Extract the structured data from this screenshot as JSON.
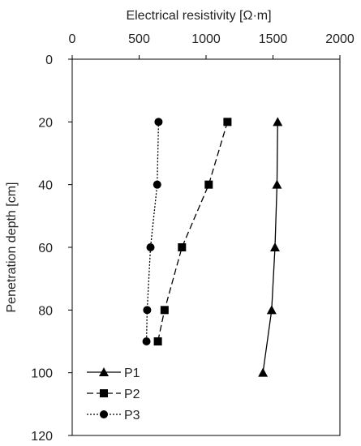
{
  "chart_data": {
    "type": "line",
    "xlabel": "Electrical resistivity [Ω·m]",
    "ylabel": "Penetration depth [cm]",
    "xlim": [
      0,
      2000
    ],
    "ylim": [
      0,
      120
    ],
    "x_ticks": [
      0,
      500,
      1000,
      1500,
      2000
    ],
    "y_ticks": [
      0,
      20,
      40,
      60,
      80,
      100,
      120
    ],
    "x_axis_position": "top",
    "y_axis_inverted": true,
    "grid": false,
    "legend_position": "bottom-left",
    "series": [
      {
        "name": "P1",
        "marker": "triangle",
        "line_style": "solid",
        "points": [
          {
            "x": 1535,
            "y": 20
          },
          {
            "x": 1530,
            "y": 40
          },
          {
            "x": 1515,
            "y": 60
          },
          {
            "x": 1490,
            "y": 80
          },
          {
            "x": 1425,
            "y": 100
          }
        ]
      },
      {
        "name": "P2",
        "marker": "square",
        "line_style": "dashed",
        "points": [
          {
            "x": 1160,
            "y": 20
          },
          {
            "x": 1020,
            "y": 40
          },
          {
            "x": 820,
            "y": 60
          },
          {
            "x": 690,
            "y": 80
          },
          {
            "x": 640,
            "y": 90
          }
        ]
      },
      {
        "name": "P3",
        "marker": "circle",
        "line_style": "dotted",
        "points": [
          {
            "x": 645,
            "y": 20
          },
          {
            "x": 635,
            "y": 40
          },
          {
            "x": 585,
            "y": 60
          },
          {
            "x": 560,
            "y": 80
          },
          {
            "x": 555,
            "y": 90
          }
        ]
      }
    ],
    "colors": {
      "line": "#000000",
      "axis": "#000000"
    }
  }
}
